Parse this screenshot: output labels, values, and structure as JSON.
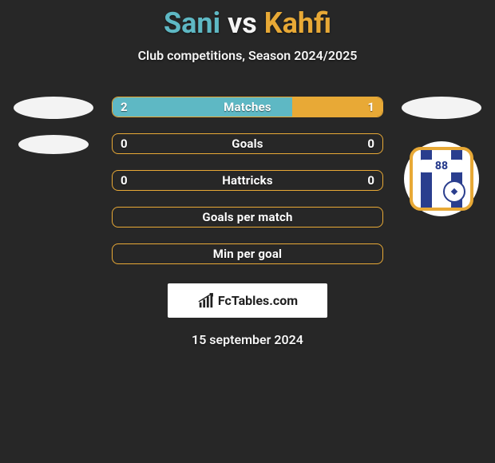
{
  "title": {
    "p1": "Sani",
    "vs": "vs",
    "p2": "Kahfi"
  },
  "subtitle": "Club competitions, Season 2024/2025",
  "colors": {
    "p1": "#5eb8c4",
    "p2": "#e8a936",
    "bg": "#272727",
    "text": "#f5f5f5"
  },
  "club_badge": {
    "number": "88",
    "outline": "#e8a936",
    "stripe": "#2a3e8e"
  },
  "bars": [
    {
      "label": "Matches",
      "left": "2",
      "right": "1",
      "left_pct": 66.67,
      "right_pct": 33.33
    },
    {
      "label": "Goals",
      "left": "0",
      "right": "0",
      "left_pct": 0,
      "right_pct": 0
    },
    {
      "label": "Hattricks",
      "left": "0",
      "right": "0",
      "left_pct": 0,
      "right_pct": 0
    },
    {
      "label": "Goals per match",
      "left": "",
      "right": "",
      "left_pct": 0,
      "right_pct": 0
    },
    {
      "label": "Min per goal",
      "left": "",
      "right": "",
      "left_pct": 0,
      "right_pct": 0
    }
  ],
  "attribution": "FcTables.com",
  "date": "15 september 2024"
}
